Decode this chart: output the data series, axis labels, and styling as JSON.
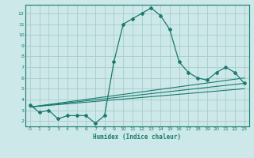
{
  "xlabel": "Humidex (Indice chaleur)",
  "background_color": "#cce8e8",
  "grid_color": "#aacccc",
  "line_color": "#1a7a6e",
  "xlim": [
    -0.5,
    23.5
  ],
  "ylim": [
    1.5,
    12.8
  ],
  "xticks": [
    0,
    1,
    2,
    3,
    4,
    5,
    6,
    7,
    8,
    9,
    10,
    11,
    12,
    13,
    14,
    15,
    16,
    17,
    18,
    19,
    20,
    21,
    22,
    23
  ],
  "yticks": [
    2,
    3,
    4,
    5,
    6,
    7,
    8,
    9,
    10,
    11,
    12
  ],
  "lines": [
    {
      "x": [
        0,
        1,
        2,
        3,
        4,
        5,
        6,
        7,
        8,
        9,
        10,
        11,
        12,
        13,
        14,
        15,
        16,
        17,
        18,
        19,
        20,
        21,
        22,
        23
      ],
      "y": [
        3.5,
        2.8,
        3.0,
        2.2,
        2.5,
        2.5,
        2.5,
        1.8,
        2.5,
        7.5,
        11.0,
        11.5,
        12.0,
        12.5,
        11.8,
        10.5,
        7.5,
        6.5,
        6.0,
        5.8,
        6.5,
        7.0,
        6.5,
        5.5
      ]
    },
    {
      "x": [
        0,
        23
      ],
      "y": [
        3.3,
        6.0
      ]
    },
    {
      "x": [
        0,
        23
      ],
      "y": [
        3.3,
        5.5
      ]
    },
    {
      "x": [
        0,
        23
      ],
      "y": [
        3.3,
        5.0
      ]
    }
  ]
}
